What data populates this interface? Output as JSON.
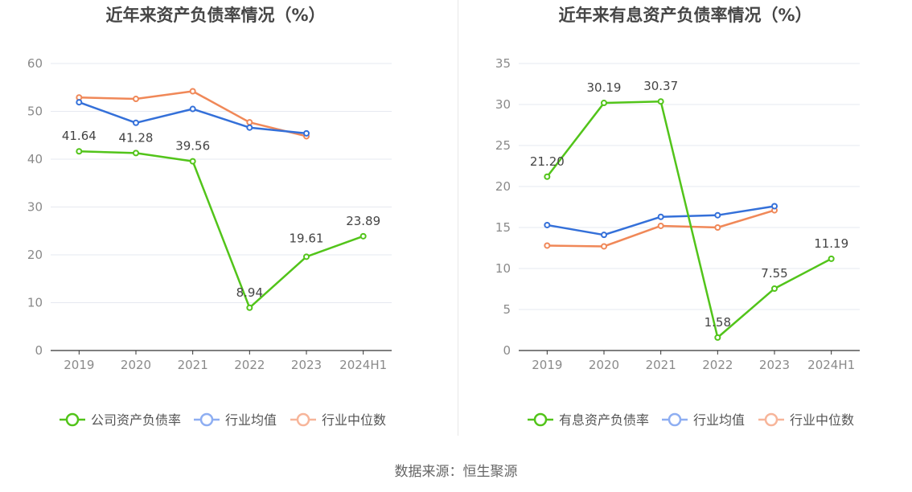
{
  "source": "数据来源：恒生聚源",
  "colors": {
    "company": "#52c41a",
    "industry_avg": "#3470d9",
    "industry_median": "#f08858",
    "legend_avg": "#8eaef2",
    "legend_median": "#f7b59a",
    "grid": "#e6e9f0",
    "axis": "#333333",
    "tick_text": "#8a8a8a",
    "title": "#464646",
    "label": "#444444"
  },
  "chart_data": [
    {
      "type": "line",
      "title": "近年来资产负债率情况（%）",
      "categories": [
        "2019",
        "2020",
        "2021",
        "2022",
        "2023",
        "2024H1"
      ],
      "ylim": [
        0,
        60
      ],
      "yticks": [
        0,
        10,
        20,
        30,
        40,
        50,
        60
      ],
      "ytick_labels": [
        "0",
        "10",
        "20",
        "30",
        "40",
        "50",
        "60"
      ],
      "grid": true,
      "legend_position": "bottom",
      "series": [
        {
          "name": "公司资产负债率",
          "key": "company",
          "values": [
            41.64,
            41.28,
            39.56,
            8.94,
            19.61,
            23.89
          ],
          "labels": [
            "41.64",
            "41.28",
            "39.56",
            "8.94",
            "19.61",
            "23.89"
          ]
        },
        {
          "name": "行业均值",
          "key": "industry_avg",
          "values": [
            51.9,
            47.6,
            50.5,
            46.6,
            45.4,
            null
          ]
        },
        {
          "name": "行业中位数",
          "key": "industry_median",
          "values": [
            52.9,
            52.6,
            54.2,
            47.7,
            44.8,
            null
          ]
        }
      ]
    },
    {
      "type": "line",
      "title": "近年来有息资产负债率情况（%）",
      "categories": [
        "2019",
        "2020",
        "2021",
        "2022",
        "2023",
        "2024H1"
      ],
      "ylim": [
        0,
        35
      ],
      "yticks": [
        0,
        5,
        10,
        15,
        20,
        25,
        30,
        35
      ],
      "ytick_labels": [
        "0",
        "5",
        "10",
        "15",
        "20",
        "25",
        "30",
        "35"
      ],
      "grid": true,
      "legend_position": "bottom",
      "series": [
        {
          "name": "有息资产负债率",
          "key": "company",
          "values": [
            21.2,
            30.19,
            30.37,
            1.58,
            7.55,
            11.19
          ],
          "labels": [
            "21.20",
            "30.19",
            "30.37",
            "1.58",
            "7.55",
            "11.19"
          ]
        },
        {
          "name": "行业均值",
          "key": "industry_avg",
          "values": [
            15.3,
            14.1,
            16.3,
            16.5,
            17.6,
            null
          ]
        },
        {
          "name": "行业中位数",
          "key": "industry_median",
          "values": [
            12.8,
            12.7,
            15.2,
            15.0,
            17.1,
            null
          ]
        }
      ]
    }
  ]
}
